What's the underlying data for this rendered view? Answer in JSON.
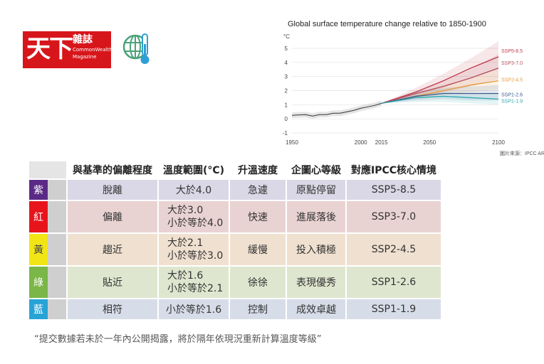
{
  "logo": {
    "big": "天下",
    "zh": "雜誌",
    "en1": "CommonWealth",
    "en2": "Magazine"
  },
  "icons": {
    "globe": "globe-thermometer-icon"
  },
  "chart_data": {
    "type": "line",
    "title": "Global surface temperature change relative to 1850-1900",
    "ylabel": "°C",
    "xlim": [
      1950,
      2100
    ],
    "ylim": [
      -1,
      5
    ],
    "xticks": [
      1950,
      2000,
      2015,
      2050,
      2100
    ],
    "yticks": [
      -1,
      0,
      1,
      2,
      3,
      4,
      5
    ],
    "source": "圖片來源：IPCC AR6",
    "historical": {
      "x": [
        1950,
        1955,
        1960,
        1965,
        1970,
        1975,
        1980,
        1985,
        1990,
        1995,
        2000,
        2005,
        2010,
        2015
      ],
      "y": [
        0.25,
        0.28,
        0.3,
        0.2,
        0.3,
        0.3,
        0.4,
        0.4,
        0.5,
        0.6,
        0.75,
        0.85,
        0.95,
        1.1
      ]
    },
    "series": [
      {
        "name": "SSP5-8.5",
        "color": "#c0394b",
        "x": [
          2015,
          2040,
          2060,
          2080,
          2100
        ],
        "y": [
          1.1,
          1.9,
          2.7,
          3.6,
          4.4
        ],
        "lo": [
          1.1,
          1.6,
          2.2,
          2.9,
          3.5
        ],
        "hi": [
          1.1,
          2.2,
          3.2,
          4.3,
          5.5
        ]
      },
      {
        "name": "SSP3-7.0",
        "color": "#b24d5a",
        "x": [
          2015,
          2040,
          2060,
          2080,
          2100
        ],
        "y": [
          1.1,
          1.8,
          2.3,
          2.9,
          3.6
        ],
        "lo": [
          1.1,
          1.5,
          1.9,
          2.3,
          2.8
        ],
        "hi": [
          1.1,
          2.0,
          2.7,
          3.5,
          4.6
        ]
      },
      {
        "name": "SSP2-4.5",
        "color": "#e39a3b",
        "x": [
          2015,
          2040,
          2060,
          2080,
          2100
        ],
        "y": [
          1.1,
          1.6,
          2.0,
          2.4,
          2.7
        ],
        "lo": [
          1.1,
          1.4,
          1.7,
          1.9,
          2.1
        ],
        "hi": [
          1.1,
          1.8,
          2.4,
          2.9,
          3.5
        ]
      },
      {
        "name": "SSP1-2.6",
        "color": "#3a5b8f",
        "x": [
          2015,
          2040,
          2060,
          2080,
          2100
        ],
        "y": [
          1.1,
          1.6,
          1.8,
          1.8,
          1.8
        ],
        "lo": [
          1.1,
          1.3,
          1.4,
          1.3,
          1.3
        ],
        "hi": [
          1.1,
          1.9,
          2.2,
          2.3,
          2.4
        ]
      },
      {
        "name": "SSP1-1.9",
        "color": "#2aa7b0",
        "x": [
          2015,
          2040,
          2060,
          2080,
          2100
        ],
        "y": [
          1.1,
          1.5,
          1.6,
          1.5,
          1.4
        ],
        "lo": [
          1.1,
          1.2,
          1.2,
          1.1,
          1.0
        ],
        "hi": [
          1.1,
          1.7,
          1.9,
          1.8,
          1.8
        ]
      }
    ]
  },
  "table": {
    "headers": [
      "",
      "與基準的偏離程度",
      "溫度範圍(°C)",
      "升溫速度",
      "企圖心等級",
      "對應IPCC核心情境"
    ],
    "rows": [
      {
        "level": "紫",
        "levelColor": "#5b2a86",
        "bg": "#dad7e6",
        "deviation": "脫離",
        "range": [
          "大於4.0"
        ],
        "speed": "急遽",
        "ambition": "原點停留",
        "scenario": "SSP5-8.5"
      },
      {
        "level": "紅",
        "levelColor": "#e8141c",
        "bg": "#e9d3d2",
        "deviation": "偏離",
        "range": [
          "大於3.0",
          "小於等於4.0"
        ],
        "speed": "快速",
        "ambition": "進展落後",
        "scenario": "SSP3-7.0"
      },
      {
        "level": "黃",
        "levelColor": "#f1e515",
        "bg": "#efe0d0",
        "deviation": "趨近",
        "range": [
          "大於2.1",
          "小於等於3.0"
        ],
        "speed": "緩慢",
        "ambition": "投入積極",
        "scenario": "SSP2-4.5"
      },
      {
        "level": "綠",
        "levelColor": "#7ab648",
        "bg": "#dfe6cf",
        "deviation": "貼近",
        "range": [
          "大於1.6",
          "小於等於2.1"
        ],
        "speed": "徐徐",
        "ambition": "表現優秀",
        "scenario": "SSP1-2.6"
      },
      {
        "level": "藍",
        "levelColor": "#27a3d6",
        "bg": "#d6dde8",
        "deviation": "相符",
        "range": [
          "小於等於1.6"
        ],
        "speed": "控制",
        "ambition": "成效卓越",
        "scenario": "SSP1-1.9"
      }
    ]
  },
  "note": "“提交數據若未於一年內公開揭露，將於隔年依現況重新計算溫度等級”"
}
